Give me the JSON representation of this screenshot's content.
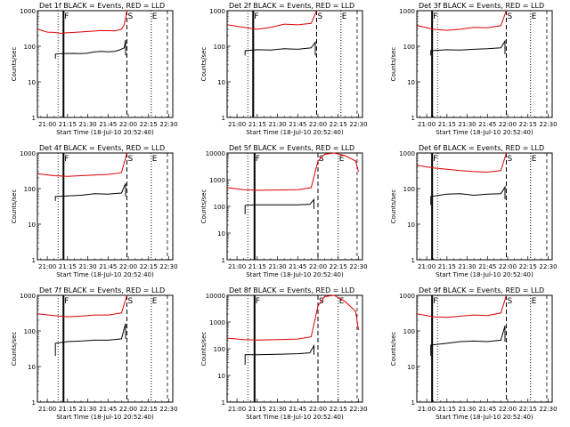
{
  "figure": {
    "ylabel": "Counts/sec",
    "xlabel": "Start Time (18-Jul-10 20:52:40)",
    "series_colors": {
      "events": "#000000",
      "lld": "#e00000"
    },
    "x_tick_labels": [
      "21:00",
      "21:15",
      "21:30",
      "21:45",
      "22:00",
      "22:15",
      "22:30"
    ],
    "y_tick_labels_3dec": [
      "1",
      "10",
      "100",
      "1000"
    ],
    "y_tick_labels_4dec": [
      "1",
      "10",
      "100",
      "1000",
      "10000"
    ],
    "marker_letters": [
      "F",
      "S",
      "E"
    ]
  },
  "chart_data": [
    {
      "type": "line",
      "title": "Det 1f BLACK = Events, RED = LLD",
      "xlabel": "Start Time (18-Jul-10 20:52:40)",
      "ylabel": "Counts/sec",
      "yscale": "log",
      "ylim": [
        1,
        1000
      ],
      "x_minutes_since_start": [
        0,
        38
      ],
      "x_tick_labels": [
        "21:00",
        "21:15",
        "21:30",
        "21:45",
        "22:00",
        "22:15",
        "22:30"
      ],
      "markers": [
        {
          "label": "F",
          "x": "21:12",
          "style": "solid"
        },
        {
          "label": "S",
          "x": "21:59",
          "style": "dashed"
        },
        {
          "label": "E",
          "x": "22:17",
          "style": "dotted"
        }
      ],
      "series": [
        {
          "name": "Events",
          "color": "#000000",
          "points": [
            [
              "21:06",
              45
            ],
            [
              "21:06",
              60
            ],
            [
              "21:10",
              62
            ],
            [
              "21:20",
              63
            ],
            [
              "21:25",
              62
            ],
            [
              "21:30",
              64
            ],
            [
              "21:35",
              70
            ],
            [
              "21:40",
              72
            ],
            [
              "21:45",
              70
            ],
            [
              "21:50",
              72
            ],
            [
              "21:54",
              80
            ],
            [
              "21:57",
              90
            ],
            [
              "21:58",
              150
            ],
            [
              "21:58",
              55
            ]
          ]
        },
        {
          "name": "LLD",
          "color": "#e00000",
          "points": [
            [
              "20:53",
              300
            ],
            [
              "21:00",
              250
            ],
            [
              "21:05",
              245
            ],
            [
              "21:10",
              230
            ],
            [
              "21:15",
              240
            ],
            [
              "21:20",
              245
            ],
            [
              "21:30",
              260
            ],
            [
              "21:40",
              275
            ],
            [
              "21:50",
              270
            ],
            [
              "21:55",
              300
            ],
            [
              "21:57",
              400
            ],
            [
              "21:59",
              1000
            ]
          ]
        }
      ]
    },
    {
      "type": "line",
      "title": "Det 2f BLACK = Events, RED = LLD",
      "xlabel": "Start Time (18-Jul-10 20:52:40)",
      "ylabel": "Counts/sec",
      "yscale": "log",
      "ylim": [
        1,
        1000
      ],
      "markers": [
        {
          "label": "F",
          "x": "21:12",
          "style": "solid"
        },
        {
          "label": "S",
          "x": "21:59",
          "style": "dashed"
        },
        {
          "label": "E",
          "x": "22:17",
          "style": "dotted"
        }
      ],
      "series": [
        {
          "name": "Events",
          "color": "#000000",
          "points": [
            [
              "21:06",
              55
            ],
            [
              "21:06",
              75
            ],
            [
              "21:15",
              80
            ],
            [
              "21:25",
              78
            ],
            [
              "21:35",
              85
            ],
            [
              "21:45",
              82
            ],
            [
              "21:55",
              90
            ],
            [
              "21:58",
              130
            ],
            [
              "21:58",
              55
            ]
          ]
        },
        {
          "name": "LLD",
          "color": "#e00000",
          "points": [
            [
              "20:53",
              400
            ],
            [
              "21:05",
              340
            ],
            [
              "21:15",
              300
            ],
            [
              "21:25",
              340
            ],
            [
              "21:35",
              420
            ],
            [
              "21:45",
              400
            ],
            [
              "21:55",
              440
            ],
            [
              "21:59",
              1000
            ]
          ]
        }
      ]
    },
    {
      "type": "line",
      "title": "Det 3f BLACK = Events, RED = LLD",
      "xlabel": "Start Time (18-Jul-10 20:52:40)",
      "ylabel": "Counts/sec",
      "yscale": "log",
      "ylim": [
        1,
        1000
      ],
      "markers": [
        {
          "label": "F",
          "x": "21:04",
          "style": "solid"
        },
        {
          "label": "S",
          "x": "21:59",
          "style": "dashed"
        },
        {
          "label": "E",
          "x": "22:17",
          "style": "dotted"
        }
      ],
      "series": [
        {
          "name": "Events",
          "color": "#000000",
          "points": [
            [
              "21:03",
              55
            ],
            [
              "21:03",
              75
            ],
            [
              "21:15",
              80
            ],
            [
              "21:25",
              78
            ],
            [
              "21:35",
              82
            ],
            [
              "21:45",
              85
            ],
            [
              "21:55",
              90
            ],
            [
              "21:58",
              140
            ],
            [
              "21:58",
              60
            ]
          ]
        },
        {
          "name": "LLD",
          "color": "#e00000",
          "points": [
            [
              "20:53",
              380
            ],
            [
              "21:05",
              300
            ],
            [
              "21:15",
              280
            ],
            [
              "21:25",
              300
            ],
            [
              "21:35",
              340
            ],
            [
              "21:45",
              330
            ],
            [
              "21:55",
              380
            ],
            [
              "21:59",
              1000
            ]
          ]
        }
      ]
    },
    {
      "type": "line",
      "title": "Det 4f BLACK = Events, RED = LLD",
      "xlabel": "Start Time (18-Jul-10 20:52:40)",
      "ylabel": "Counts/sec",
      "yscale": "log",
      "ylim": [
        1,
        1000
      ],
      "markers": [
        {
          "label": "F",
          "x": "21:12",
          "style": "solid"
        },
        {
          "label": "S",
          "x": "21:59",
          "style": "dashed"
        },
        {
          "label": "E",
          "x": "22:17",
          "style": "dotted"
        }
      ],
      "series": [
        {
          "name": "Events",
          "color": "#000000",
          "points": [
            [
              "21:06",
              45
            ],
            [
              "21:06",
              60
            ],
            [
              "21:15",
              62
            ],
            [
              "21:25",
              65
            ],
            [
              "21:35",
              72
            ],
            [
              "21:45",
              70
            ],
            [
              "21:55",
              75
            ],
            [
              "21:58",
              140
            ],
            [
              "21:58",
              60
            ]
          ]
        },
        {
          "name": "LLD",
          "color": "#e00000",
          "points": [
            [
              "20:53",
              260
            ],
            [
              "21:05",
              230
            ],
            [
              "21:15",
              220
            ],
            [
              "21:25",
              230
            ],
            [
              "21:35",
              240
            ],
            [
              "21:45",
              250
            ],
            [
              "21:55",
              280
            ],
            [
              "21:59",
              1000
            ]
          ]
        }
      ]
    },
    {
      "type": "line",
      "title": "Det 5f BLACK = Events, RED = LLD",
      "xlabel": "Start Time (18-Jul-10 20:52:40)",
      "ylabel": "Counts/sec",
      "yscale": "log",
      "ylim": [
        1,
        10000
      ],
      "markers": [
        {
          "label": "F",
          "x": "21:13",
          "style": "solid"
        },
        {
          "label": "S",
          "x": "22:00",
          "style": "dashed"
        },
        {
          "label": "E",
          "x": "22:15",
          "style": "dotted"
        }
      ],
      "series": [
        {
          "name": "Events",
          "color": "#000000",
          "points": [
            [
              "21:06",
              50
            ],
            [
              "21:06",
              110
            ],
            [
              "21:15",
              115
            ],
            [
              "21:30",
              115
            ],
            [
              "21:45",
              115
            ],
            [
              "21:54",
              120
            ],
            [
              "21:57",
              180
            ],
            [
              "21:57",
              80
            ]
          ]
        },
        {
          "name": "LLD",
          "color": "#e00000",
          "points": [
            [
              "20:53",
              500
            ],
            [
              "21:05",
              420
            ],
            [
              "21:15",
              400
            ],
            [
              "21:30",
              410
            ],
            [
              "21:45",
              420
            ],
            [
              "21:55",
              500
            ],
            [
              "22:00",
              5000
            ],
            [
              "22:05",
              9000
            ],
            [
              "22:12",
              10000
            ],
            [
              "22:20",
              8000
            ],
            [
              "22:28",
              5000
            ],
            [
              "22:30",
              2000
            ]
          ]
        }
      ]
    },
    {
      "type": "line",
      "title": "Det 6f BLACK = Events, RED = LLD",
      "xlabel": "Start Time (18-Jul-10 20:52:40)",
      "ylabel": "Counts/sec",
      "yscale": "log",
      "ylim": [
        1,
        1000
      ],
      "markers": [
        {
          "label": "F",
          "x": "21:04",
          "style": "solid"
        },
        {
          "label": "S",
          "x": "21:59",
          "style": "dashed"
        },
        {
          "label": "E",
          "x": "22:17",
          "style": "dotted"
        }
      ],
      "series": [
        {
          "name": "Events",
          "color": "#000000",
          "points": [
            [
              "21:03",
              35
            ],
            [
              "21:03",
              60
            ],
            [
              "21:15",
              70
            ],
            [
              "21:25",
              72
            ],
            [
              "21:35",
              65
            ],
            [
              "21:45",
              70
            ],
            [
              "21:55",
              72
            ],
            [
              "21:58",
              110
            ],
            [
              "21:58",
              50
            ]
          ]
        },
        {
          "name": "LLD",
          "color": "#e00000",
          "points": [
            [
              "20:53",
              450
            ],
            [
              "21:05",
              380
            ],
            [
              "21:15",
              350
            ],
            [
              "21:25",
              320
            ],
            [
              "21:35",
              300
            ],
            [
              "21:45",
              290
            ],
            [
              "21:55",
              320
            ],
            [
              "21:59",
              1000
            ]
          ]
        }
      ]
    },
    {
      "type": "line",
      "title": "Det 7f BLACK = Events, RED = LLD",
      "xlabel": "Start Time (18-Jul-10 20:52:40)",
      "ylabel": "Counts/sec",
      "yscale": "log",
      "ylim": [
        1,
        1000
      ],
      "markers": [
        {
          "label": "F",
          "x": "21:12",
          "style": "solid"
        },
        {
          "label": "S",
          "x": "21:59",
          "style": "dashed"
        },
        {
          "label": "E",
          "x": "22:17",
          "style": "dotted"
        }
      ],
      "series": [
        {
          "name": "Events",
          "color": "#000000",
          "points": [
            [
              "21:06",
              20
            ],
            [
              "21:06",
              45
            ],
            [
              "21:15",
              50
            ],
            [
              "21:25",
              52
            ],
            [
              "21:35",
              55
            ],
            [
              "21:45",
              55
            ],
            [
              "21:55",
              60
            ],
            [
              "21:58",
              160
            ],
            [
              "21:58",
              60
            ]
          ]
        },
        {
          "name": "LLD",
          "color": "#e00000",
          "points": [
            [
              "20:53",
              300
            ],
            [
              "21:05",
              270
            ],
            [
              "21:15",
              250
            ],
            [
              "21:25",
              260
            ],
            [
              "21:35",
              280
            ],
            [
              "21:45",
              280
            ],
            [
              "21:55",
              320
            ],
            [
              "21:59",
              1000
            ]
          ]
        }
      ]
    },
    {
      "type": "line",
      "title": "Det 8f BLACK = Events, RED = LLD",
      "xlabel": "Start Time (18-Jul-10 20:52:40)",
      "ylabel": "Counts/sec",
      "yscale": "log",
      "ylim": [
        1,
        10000
      ],
      "markers": [
        {
          "label": "F",
          "x": "21:13",
          "style": "solid"
        },
        {
          "label": "S",
          "x": "22:00",
          "style": "dashed"
        },
        {
          "label": "E",
          "x": "22:15",
          "style": "dotted"
        }
      ],
      "series": [
        {
          "name": "Events",
          "color": "#000000",
          "points": [
            [
              "21:06",
              25
            ],
            [
              "21:06",
              60
            ],
            [
              "21:15",
              60
            ],
            [
              "21:30",
              62
            ],
            [
              "21:45",
              65
            ],
            [
              "21:54",
              70
            ],
            [
              "21:57",
              130
            ],
            [
              "21:57",
              60
            ]
          ]
        },
        {
          "name": "LLD",
          "color": "#e00000",
          "points": [
            [
              "20:53",
              250
            ],
            [
              "21:05",
              220
            ],
            [
              "21:15",
              210
            ],
            [
              "21:30",
              220
            ],
            [
              "21:45",
              230
            ],
            [
              "21:55",
              280
            ],
            [
              "22:00",
              4000
            ],
            [
              "22:05",
              9000
            ],
            [
              "22:12",
              10000
            ],
            [
              "22:20",
              6000
            ],
            [
              "22:28",
              2500
            ],
            [
              "22:30",
              500
            ]
          ]
        }
      ]
    },
    {
      "type": "line",
      "title": "Det 9f BLACK = Events, RED = LLD",
      "xlabel": "Start Time (18-Jul-10 20:52:40)",
      "ylabel": "Counts/sec",
      "yscale": "log",
      "ylim": [
        1,
        1000
      ],
      "markers": [
        {
          "label": "F",
          "x": "21:04",
          "style": "solid"
        },
        {
          "label": "S",
          "x": "21:59",
          "style": "dashed"
        },
        {
          "label": "E",
          "x": "22:17",
          "style": "dotted"
        }
      ],
      "series": [
        {
          "name": "Events",
          "color": "#000000",
          "points": [
            [
              "21:03",
              20
            ],
            [
              "21:03",
              40
            ],
            [
              "21:15",
              45
            ],
            [
              "21:25",
              50
            ],
            [
              "21:35",
              52
            ],
            [
              "21:45",
              50
            ],
            [
              "21:55",
              55
            ],
            [
              "21:58",
              140
            ],
            [
              "21:58",
              50
            ]
          ]
        },
        {
          "name": "LLD",
          "color": "#e00000",
          "points": [
            [
              "20:53",
              300
            ],
            [
              "21:05",
              250
            ],
            [
              "21:15",
              240
            ],
            [
              "21:25",
              260
            ],
            [
              "21:35",
              280
            ],
            [
              "21:45",
              270
            ],
            [
              "21:55",
              320
            ],
            [
              "21:59",
              1000
            ]
          ]
        }
      ]
    }
  ]
}
